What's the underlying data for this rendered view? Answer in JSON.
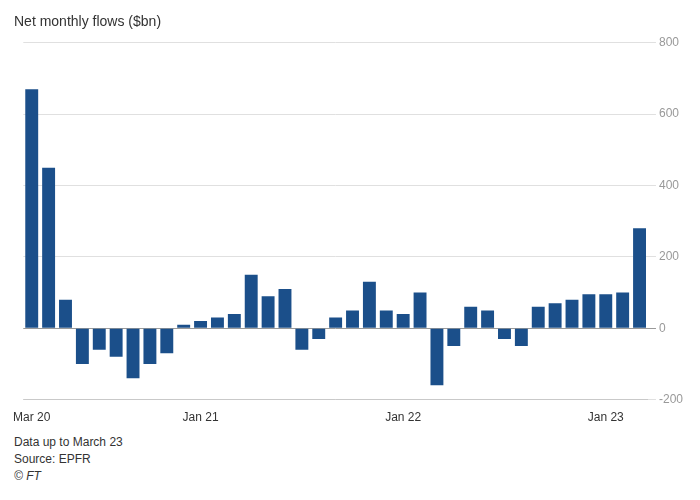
{
  "chart_data": {
    "type": "bar",
    "title": "Net monthly flows ($bn)",
    "categories": [
      "Mar 20",
      null,
      null,
      null,
      null,
      null,
      null,
      null,
      null,
      null,
      "Jan 21",
      null,
      null,
      null,
      null,
      null,
      null,
      null,
      null,
      null,
      null,
      null,
      "Jan 22",
      null,
      null,
      null,
      null,
      null,
      null,
      null,
      null,
      null,
      null,
      null,
      "Jan 23",
      null,
      null
    ],
    "values": [
      670,
      450,
      80,
      -100,
      -60,
      -80,
      -140,
      -100,
      -70,
      10,
      20,
      30,
      40,
      150,
      90,
      110,
      -60,
      -30,
      30,
      50,
      130,
      50,
      40,
      100,
      -160,
      -50,
      60,
      50,
      -30,
      -50,
      60,
      70,
      80,
      95,
      95,
      100,
      280
    ],
    "color": "#1B4F8A",
    "ylim": [
      -200,
      800
    ],
    "yticks": [
      -200,
      0,
      200,
      400,
      600,
      800
    ],
    "grid": true,
    "annotations": [
      "Data up to March 23",
      "Source: EPFR",
      "© FT"
    ]
  }
}
